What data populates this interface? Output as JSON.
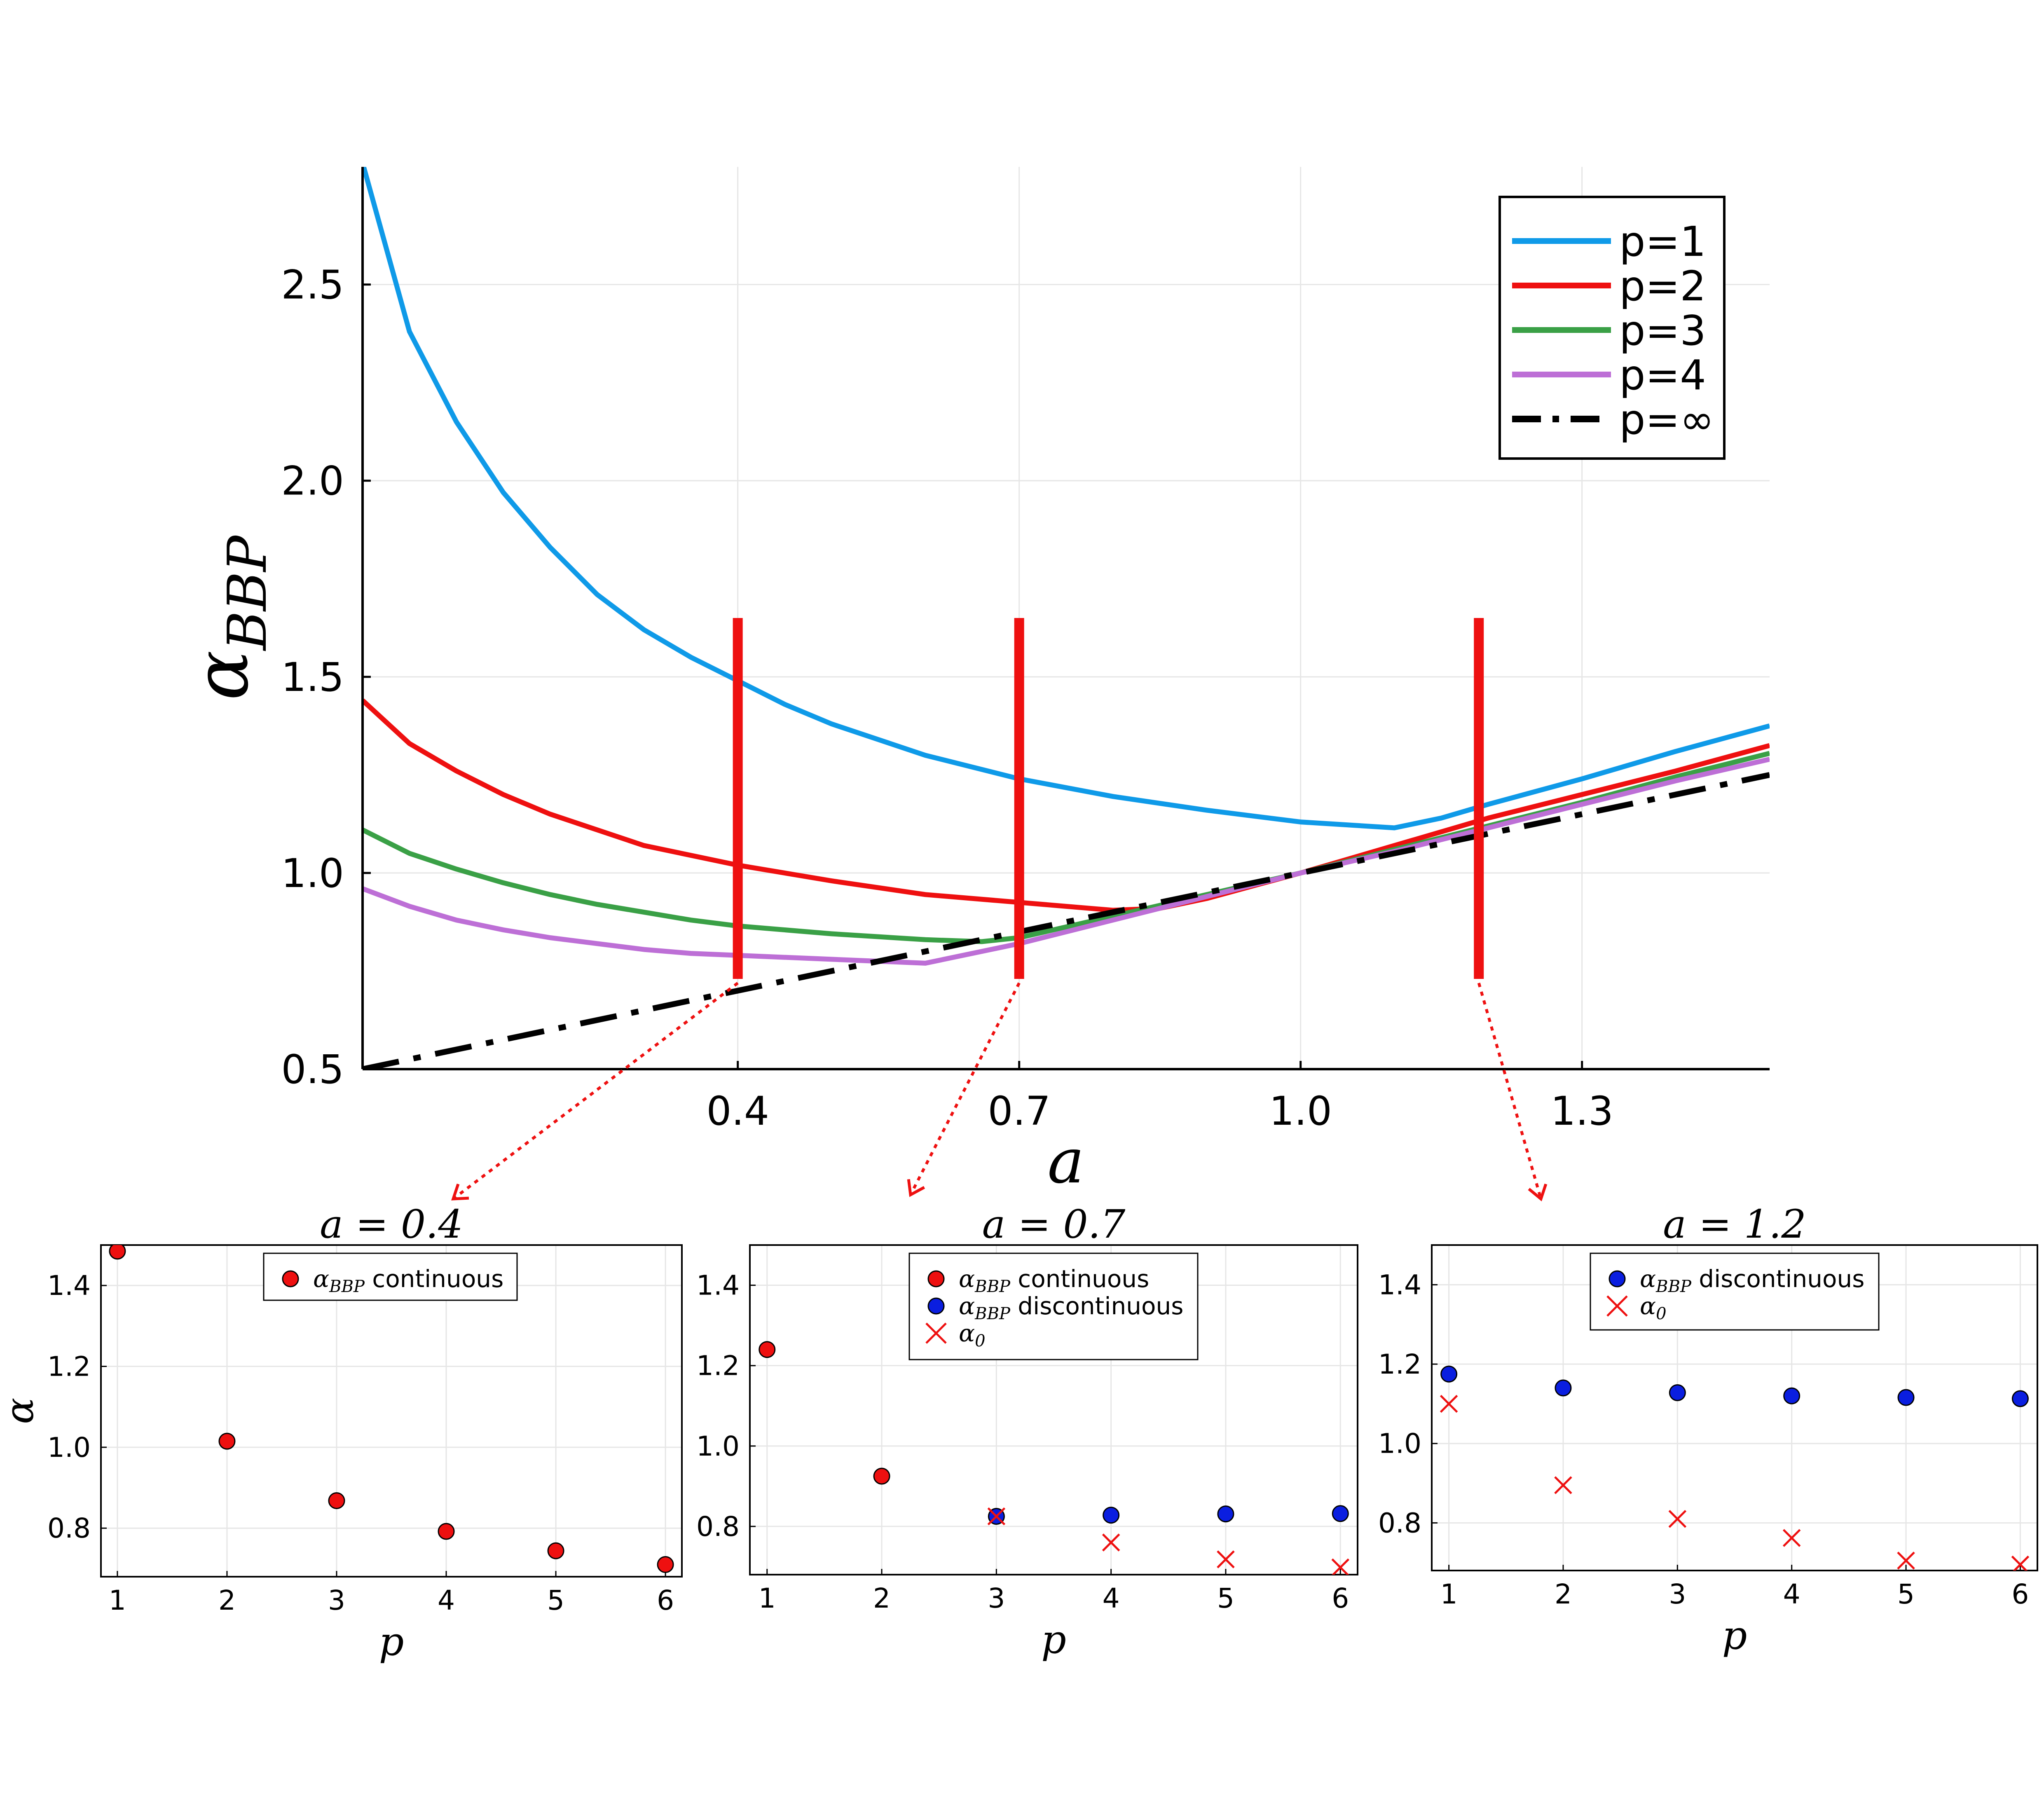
{
  "chart_data": [
    {
      "type": "line",
      "xlabel": "a",
      "ylabel": "α_BBP",
      "ylabel_main": "α",
      "ylabel_sub": "BBP",
      "xlim": [
        0.0,
        1.5
      ],
      "ylim": [
        0.5,
        2.8
      ],
      "xticks": [
        0.4,
        0.7,
        1.0,
        1.3
      ],
      "xtick_labels": [
        "0.4",
        "0.7",
        "1.0",
        "1.3"
      ],
      "yticks": [
        0.5,
        1.0,
        1.5,
        2.0,
        2.5
      ],
      "ytick_labels": [
        "0.5",
        "1.0",
        "1.5",
        "2.0",
        "2.5"
      ],
      "legend_position": "top-right",
      "series": [
        {
          "name": "p=1",
          "color": "#0f9ae8",
          "style": "solid",
          "x": [
            0.0,
            0.05,
            0.1,
            0.15,
            0.2,
            0.25,
            0.3,
            0.35,
            0.4,
            0.45,
            0.5,
            0.55,
            0.6,
            0.7,
            0.8,
            0.9,
            1.0,
            1.1,
            1.15,
            1.2,
            1.3,
            1.4,
            1.5
          ],
          "y": [
            2.81,
            2.38,
            2.15,
            1.97,
            1.83,
            1.71,
            1.62,
            1.55,
            1.49,
            1.43,
            1.38,
            1.34,
            1.3,
            1.24,
            1.195,
            1.16,
            1.13,
            1.115,
            1.14,
            1.175,
            1.24,
            1.31,
            1.375
          ]
        },
        {
          "name": "p=2",
          "color": "#ee1010",
          "style": "solid",
          "x": [
            0.0,
            0.05,
            0.1,
            0.15,
            0.2,
            0.25,
            0.3,
            0.35,
            0.4,
            0.5,
            0.6,
            0.7,
            0.8,
            0.85,
            0.9,
            1.0,
            1.1,
            1.2,
            1.3,
            1.4,
            1.5
          ],
          "y": [
            1.44,
            1.33,
            1.26,
            1.2,
            1.15,
            1.11,
            1.07,
            1.045,
            1.02,
            0.98,
            0.945,
            0.925,
            0.905,
            0.91,
            0.935,
            1.0,
            1.07,
            1.14,
            1.2,
            1.26,
            1.325
          ]
        },
        {
          "name": "p=3",
          "color": "#3aa046",
          "style": "solid",
          "x": [
            0.0,
            0.05,
            0.1,
            0.15,
            0.2,
            0.25,
            0.3,
            0.35,
            0.4,
            0.5,
            0.6,
            0.66,
            0.7,
            0.8,
            0.9,
            1.0,
            1.1,
            1.2,
            1.3,
            1.4,
            1.5
          ],
          "y": [
            1.11,
            1.05,
            1.01,
            0.975,
            0.945,
            0.92,
            0.9,
            0.88,
            0.865,
            0.845,
            0.83,
            0.825,
            0.835,
            0.89,
            0.945,
            1.0,
            1.06,
            1.12,
            1.18,
            1.245,
            1.305
          ]
        },
        {
          "name": "p=4",
          "color": "#bd6fd6",
          "style": "solid",
          "x": [
            0.0,
            0.05,
            0.1,
            0.15,
            0.2,
            0.25,
            0.3,
            0.35,
            0.4,
            0.5,
            0.6,
            0.7,
            0.8,
            0.9,
            1.0,
            1.1,
            1.2,
            1.3,
            1.4,
            1.5
          ],
          "y": [
            0.96,
            0.915,
            0.88,
            0.855,
            0.835,
            0.82,
            0.805,
            0.795,
            0.79,
            0.78,
            0.77,
            0.82,
            0.88,
            0.94,
            1.0,
            1.055,
            1.115,
            1.175,
            1.235,
            1.29
          ]
        },
        {
          "name": "p=∞",
          "color": "#000000",
          "style": "dashdot",
          "x": [
            0.0,
            1.5
          ],
          "y": [
            0.5,
            1.25
          ]
        }
      ],
      "annotations": [
        {
          "type": "vertical-bar",
          "x": 0.4,
          "y_range": [
            0.73,
            1.65
          ],
          "color": "#ee1010"
        },
        {
          "type": "vertical-bar",
          "x": 0.7,
          "y_range": [
            0.73,
            1.65
          ],
          "color": "#ee1010"
        },
        {
          "type": "vertical-bar",
          "x": 1.19,
          "y_range": [
            0.73,
            1.65
          ],
          "color": "#ee1010"
        }
      ]
    },
    {
      "type": "scatter",
      "title": "a = 0.4",
      "xlabel": "p",
      "ylabel": "α",
      "xlim": [
        0.85,
        6.15
      ],
      "ylim": [
        0.68,
        1.5
      ],
      "xticks": [
        1,
        2,
        3,
        4,
        5,
        6
      ],
      "xtick_labels": [
        "1",
        "2",
        "3",
        "4",
        "5",
        "6"
      ],
      "yticks": [
        0.8,
        1.0,
        1.2,
        1.4
      ],
      "ytick_labels": [
        "0.8",
        "1.0",
        "1.2",
        "1.4"
      ],
      "series": [
        {
          "name": "continuous",
          "legend_sub": "BBP",
          "marker": "circle",
          "color": "#ee1010",
          "x": [
            1,
            2,
            3,
            4,
            5,
            6
          ],
          "y": [
            1.485,
            1.015,
            0.868,
            0.792,
            0.744,
            0.71
          ]
        }
      ]
    },
    {
      "type": "scatter",
      "title": "a = 0.7",
      "xlabel": "p",
      "ylabel": "",
      "xlim": [
        0.85,
        6.15
      ],
      "ylim": [
        0.68,
        1.5
      ],
      "xticks": [
        1,
        2,
        3,
        4,
        5,
        6
      ],
      "xtick_labels": [
        "1",
        "2",
        "3",
        "4",
        "5",
        "6"
      ],
      "yticks": [
        0.8,
        1.0,
        1.2,
        1.4
      ],
      "ytick_labels": [
        "0.8",
        "1.0",
        "1.2",
        "1.4"
      ],
      "series": [
        {
          "name": "continuous",
          "legend_sub": "BBP",
          "marker": "circle",
          "color": "#ee1010",
          "x": [
            1,
            2
          ],
          "y": [
            1.24,
            0.925
          ]
        },
        {
          "name": "discontinuous",
          "legend_sub": "BBP",
          "marker": "circle",
          "color": "#0a1ee0",
          "x": [
            3,
            4,
            5,
            6
          ],
          "y": [
            0.825,
            0.828,
            0.831,
            0.832
          ]
        },
        {
          "name": "",
          "legend_sub": "0",
          "marker": "cross",
          "color": "#ee1010",
          "x": [
            3,
            4,
            5,
            6
          ],
          "y": [
            0.825,
            0.76,
            0.718,
            0.698
          ]
        }
      ]
    },
    {
      "type": "scatter",
      "title": "a = 1.2",
      "xlabel": "p",
      "ylabel": "",
      "xlim": [
        0.85,
        6.15
      ],
      "ylim": [
        0.68,
        1.5
      ],
      "xticks": [
        1,
        2,
        3,
        4,
        5,
        6
      ],
      "xtick_labels": [
        "1",
        "2",
        "3",
        "4",
        "5",
        "6"
      ],
      "yticks": [
        0.8,
        1.0,
        1.2,
        1.4
      ],
      "ytick_labels": [
        "0.8",
        "1.0",
        "1.2",
        "1.4"
      ],
      "series": [
        {
          "name": "discontinuous",
          "legend_sub": "BBP",
          "marker": "circle",
          "color": "#0a1ee0",
          "x": [
            1,
            2,
            3,
            4,
            5,
            6
          ],
          "y": [
            1.175,
            1.14,
            1.128,
            1.12,
            1.116,
            1.113
          ]
        },
        {
          "name": "",
          "legend_sub": "0",
          "marker": "cross",
          "color": "#ee1010",
          "x": [
            1,
            2,
            3,
            4,
            5,
            6
          ],
          "y": [
            1.1,
            0.895,
            0.81,
            0.762,
            0.705,
            0.695
          ]
        }
      ]
    }
  ]
}
